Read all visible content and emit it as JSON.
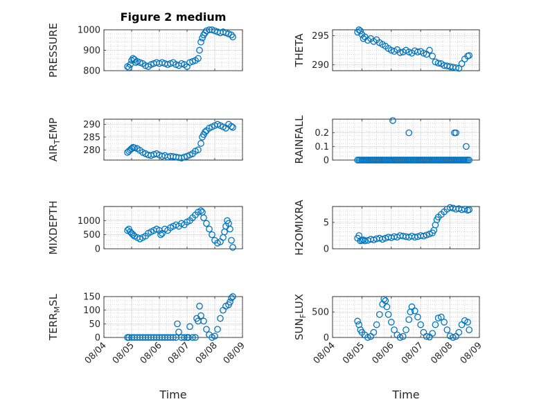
{
  "figure": {
    "title": "Figure 2 medium"
  },
  "chart_data": [
    {
      "type": "scatter",
      "ylabel": "PRESSURE",
      "ylabel_main": "PRESSURE",
      "ylim": [
        800,
        1000
      ],
      "yticks": [
        800,
        900,
        1000
      ],
      "xlim": [
        0,
        5
      ],
      "x": [
        0.85,
        0.9,
        0.95,
        1.0,
        1.05,
        1.1,
        1.15,
        1.2,
        1.3,
        1.4,
        1.5,
        1.6,
        1.7,
        1.8,
        1.9,
        2.0,
        2.1,
        2.2,
        2.3,
        2.4,
        2.5,
        2.6,
        2.7,
        2.8,
        2.9,
        3.0,
        3.1,
        3.2,
        3.3,
        3.4,
        3.45,
        3.5,
        3.55,
        3.6,
        3.65,
        3.7,
        3.8,
        3.9,
        4.0,
        4.1,
        4.2,
        4.3,
        4.4,
        4.5,
        4.6,
        4.65
      ],
      "y": [
        820,
        815,
        830,
        850,
        860,
        855,
        840,
        845,
        840,
        835,
        825,
        820,
        830,
        835,
        840,
        835,
        840,
        835,
        830,
        835,
        840,
        830,
        825,
        835,
        830,
        820,
        840,
        845,
        850,
        860,
        900,
        940,
        960,
        975,
        985,
        995,
        1000,
        1000,
        995,
        990,
        985,
        990,
        985,
        980,
        975,
        965
      ]
    },
    {
      "type": "scatter",
      "ylabel": "THETA",
      "ylabel_main": "THETA",
      "ylim": [
        289,
        296
      ],
      "yticks": [
        290,
        295
      ],
      "xlim": [
        0,
        5
      ],
      "x": [
        0.85,
        0.9,
        0.95,
        1.0,
        1.05,
        1.1,
        1.2,
        1.3,
        1.4,
        1.5,
        1.6,
        1.7,
        1.8,
        1.9,
        2.0,
        2.1,
        2.2,
        2.3,
        2.4,
        2.5,
        2.6,
        2.7,
        2.8,
        2.9,
        3.0,
        3.1,
        3.2,
        3.3,
        3.4,
        3.5,
        3.6,
        3.7,
        3.8,
        3.9,
        4.0,
        4.1,
        4.2,
        4.3,
        4.4,
        4.5,
        4.6,
        4.65
      ],
      "y": [
        295.6,
        296.0,
        295.8,
        295.2,
        294.5,
        294.8,
        294.2,
        294.5,
        294.0,
        294.3,
        293.8,
        293.5,
        293.2,
        292.8,
        292.5,
        292.3,
        292.6,
        292.1,
        292.2,
        292.5,
        292.2,
        292.0,
        292.4,
        292.2,
        292.3,
        292.0,
        291.8,
        292.5,
        291.5,
        290.5,
        290.3,
        290.2,
        289.9,
        289.8,
        289.7,
        289.6,
        289.5,
        289.4,
        290.2,
        291.0,
        291.5,
        291.6
      ]
    },
    {
      "type": "scatter",
      "ylabel": "AIR_TEMP",
      "ylabel_main": "AIR",
      "ylabel_sub": "T",
      "ylabel_tail": "EMP",
      "ylim": [
        276,
        292
      ],
      "yticks": [
        280,
        285,
        290
      ],
      "xlim": [
        0,
        5
      ],
      "x": [
        0.85,
        0.9,
        0.95,
        1.0,
        1.05,
        1.1,
        1.2,
        1.3,
        1.4,
        1.5,
        1.6,
        1.7,
        1.8,
        1.9,
        2.0,
        2.1,
        2.2,
        2.3,
        2.4,
        2.5,
        2.6,
        2.7,
        2.8,
        2.9,
        3.0,
        3.1,
        3.2,
        3.3,
        3.4,
        3.5,
        3.55,
        3.6,
        3.65,
        3.7,
        3.8,
        3.9,
        4.0,
        4.1,
        4.2,
        4.3,
        4.4,
        4.5,
        4.6,
        4.65
      ],
      "y": [
        279,
        279.5,
        280,
        280.5,
        281,
        280.8,
        280.5,
        279.8,
        279,
        278.5,
        278,
        277.8,
        278.2,
        278.5,
        278,
        277.5,
        277.8,
        277.2,
        277.5,
        277.4,
        277.2,
        277.0,
        276.8,
        277.2,
        277.5,
        278.0,
        278.5,
        279.5,
        280.0,
        282.5,
        285,
        286,
        287,
        287.5,
        288.5,
        289.0,
        289.5,
        290.0,
        289.5,
        289.0,
        288.5,
        290.0,
        289.2,
        288.8
      ]
    },
    {
      "type": "scatter",
      "ylabel": "RAINFALL",
      "ylabel_main": "RAINFALL",
      "ylim": [
        0,
        0.3
      ],
      "yticks": [
        0,
        0.1,
        0.2
      ],
      "ytick_labels": [
        "0",
        "0.1",
        "0.2"
      ],
      "xlim": [
        0,
        5
      ],
      "x": [
        0.85,
        0.9,
        0.95,
        1.0,
        1.05,
        1.1,
        1.15,
        1.2,
        1.25,
        1.3,
        1.35,
        1.4,
        1.45,
        1.5,
        1.55,
        1.6,
        1.65,
        1.7,
        1.75,
        1.8,
        1.85,
        1.9,
        1.95,
        2.0,
        2.05,
        2.1,
        2.15,
        2.2,
        2.25,
        2.3,
        2.35,
        2.4,
        2.45,
        2.5,
        2.55,
        2.6,
        2.65,
        2.7,
        2.75,
        2.8,
        2.85,
        2.9,
        2.95,
        3.0,
        3.05,
        3.1,
        3.15,
        3.2,
        3.25,
        3.3,
        3.35,
        3.4,
        3.45,
        3.5,
        3.55,
        3.6,
        3.65,
        3.7,
        3.75,
        3.8,
        3.85,
        3.9,
        3.95,
        4.0,
        4.05,
        4.1,
        4.15,
        4.2,
        4.25,
        4.3,
        4.35,
        4.4,
        4.45,
        4.5,
        4.55,
        4.6,
        4.65,
        2.05,
        2.6,
        4.15,
        4.2,
        4.55
      ],
      "y": [
        0,
        0,
        0,
        0,
        0,
        0,
        0,
        0,
        0,
        0,
        0,
        0,
        0,
        0,
        0,
        0,
        0,
        0,
        0,
        0,
        0,
        0,
        0,
        0,
        0,
        0,
        0,
        0,
        0,
        0,
        0,
        0,
        0,
        0,
        0,
        0,
        0,
        0,
        0,
        0,
        0,
        0,
        0,
        0,
        0,
        0,
        0,
        0,
        0,
        0,
        0,
        0,
        0,
        0,
        0,
        0,
        0,
        0,
        0,
        0,
        0,
        0,
        0,
        0,
        0,
        0,
        0,
        0,
        0,
        0,
        0,
        0,
        0,
        0,
        0,
        0,
        0,
        0.29,
        0.2,
        0.2,
        0.2,
        0.1
      ]
    },
    {
      "type": "scatter",
      "ylabel": "MIXDEPTH",
      "ylabel_main": "MIXDEPTH",
      "ylim": [
        0,
        1500
      ],
      "yticks": [
        0,
        500,
        1000
      ],
      "xlim": [
        0,
        5
      ],
      "x": [
        0.85,
        0.9,
        0.95,
        1.0,
        1.05,
        1.1,
        1.2,
        1.3,
        1.4,
        1.5,
        1.6,
        1.7,
        1.8,
        1.9,
        2.0,
        2.05,
        2.1,
        2.2,
        2.3,
        2.4,
        2.5,
        2.6,
        2.7,
        2.8,
        2.9,
        3.0,
        3.1,
        3.2,
        3.3,
        3.4,
        3.5,
        3.55,
        3.6,
        3.7,
        3.8,
        3.9,
        4.0,
        4.1,
        4.2,
        4.3,
        4.35,
        4.4,
        4.45,
        4.5,
        4.55,
        4.6,
        4.65
      ],
      "y": [
        650,
        700,
        600,
        550,
        500,
        450,
        400,
        350,
        400,
        450,
        550,
        600,
        650,
        700,
        650,
        500,
        550,
        700,
        650,
        750,
        800,
        850,
        800,
        900,
        850,
        950,
        1000,
        1100,
        1200,
        1300,
        1350,
        1300,
        1100,
        900,
        700,
        500,
        300,
        200,
        250,
        400,
        600,
        800,
        1000,
        900,
        700,
        300,
        50
      ]
    },
    {
      "type": "scatter",
      "ylabel": "H2OMIXRA",
      "ylabel_main": "H2OMIXRA",
      "ylim": [
        0,
        8
      ],
      "yticks": [
        0,
        5
      ],
      "xlim": [
        0,
        5
      ],
      "x": [
        0.85,
        0.9,
        0.95,
        1.0,
        1.05,
        1.1,
        1.2,
        1.3,
        1.4,
        1.5,
        1.6,
        1.7,
        1.8,
        1.9,
        2.0,
        2.1,
        2.2,
        2.3,
        2.4,
        2.5,
        2.6,
        2.7,
        2.8,
        2.9,
        3.0,
        3.1,
        3.2,
        3.3,
        3.4,
        3.45,
        3.5,
        3.55,
        3.6,
        3.7,
        3.8,
        3.9,
        4.0,
        4.1,
        4.2,
        4.3,
        4.4,
        4.5,
        4.6,
        4.65
      ],
      "y": [
        2.0,
        2.5,
        1.5,
        1.6,
        1.7,
        1.5,
        1.6,
        1.8,
        1.7,
        1.9,
        2.0,
        1.8,
        2.0,
        2.2,
        2.1,
        2.3,
        2.2,
        2.5,
        2.4,
        2.3,
        2.2,
        2.4,
        2.2,
        2.3,
        2.5,
        2.4,
        2.6,
        2.8,
        3.0,
        3.5,
        4.5,
        5.5,
        6.0,
        6.5,
        7.0,
        7.5,
        7.8,
        7.7,
        7.5,
        7.6,
        7.4,
        7.5,
        7.3,
        7.4
      ]
    },
    {
      "type": "scatter",
      "ylabel": "TERR_MSL",
      "ylabel_main": "TERR",
      "ylabel_sub": "M",
      "ylabel_tail": "SL",
      "ylim": [
        0,
        150
      ],
      "yticks": [
        0,
        50,
        100,
        150
      ],
      "xlim": [
        0,
        5
      ],
      "x": [
        0.85,
        0.9,
        1.0,
        1.1,
        1.2,
        1.3,
        1.4,
        1.5,
        1.6,
        1.7,
        1.8,
        1.9,
        2.0,
        2.1,
        2.2,
        2.3,
        2.4,
        2.5,
        2.6,
        2.65,
        2.7,
        2.8,
        2.9,
        3.0,
        3.05,
        3.1,
        3.2,
        3.3,
        3.35,
        3.4,
        3.45,
        3.5,
        3.6,
        3.7,
        3.8,
        3.9,
        4.0,
        4.1,
        4.2,
        4.3,
        4.4,
        4.5,
        4.55,
        4.6,
        4.65
      ],
      "y": [
        0,
        0,
        0,
        0,
        0,
        0,
        0,
        0,
        0,
        0,
        0,
        0,
        0,
        0,
        0,
        0,
        0,
        0,
        0,
        50,
        20,
        0,
        0,
        0,
        0,
        40,
        0,
        0,
        70,
        60,
        115,
        80,
        60,
        30,
        10,
        0,
        5,
        30,
        70,
        100,
        115,
        120,
        130,
        145,
        150
      ]
    },
    {
      "type": "scatter",
      "ylabel": "SUN_FLUX",
      "ylabel_main": "SUN",
      "ylabel_sub": "F",
      "ylabel_tail": "LUX",
      "ylim": [
        0,
        800
      ],
      "yticks": [
        0,
        500
      ],
      "xlim": [
        0,
        5
      ],
      "x": [
        0.85,
        0.9,
        0.95,
        1.0,
        1.1,
        1.2,
        1.3,
        1.4,
        1.5,
        1.6,
        1.7,
        1.75,
        1.8,
        1.85,
        1.9,
        2.0,
        2.1,
        2.2,
        2.3,
        2.4,
        2.5,
        2.6,
        2.65,
        2.7,
        2.8,
        2.9,
        3.0,
        3.1,
        3.2,
        3.3,
        3.4,
        3.5,
        3.6,
        3.7,
        3.8,
        3.9,
        4.0,
        4.1,
        4.2,
        4.3,
        4.4,
        4.5,
        4.6,
        4.65
      ],
      "y": [
        320,
        250,
        150,
        100,
        50,
        0,
        20,
        100,
        250,
        450,
        650,
        750,
        720,
        600,
        450,
        300,
        150,
        50,
        0,
        20,
        150,
        350,
        500,
        600,
        520,
        400,
        250,
        100,
        20,
        10,
        80,
        250,
        380,
        400,
        300,
        150,
        30,
        0,
        20,
        100,
        250,
        330,
        300,
        150
      ]
    }
  ],
  "axes": {
    "xtick_labels": [
      "08/04",
      "08/05",
      "08/06",
      "08/07",
      "08/08",
      "08/09"
    ],
    "xlabel": "Time"
  },
  "style": {
    "marker_color": "#0072BD",
    "axis_color": "#262626"
  }
}
